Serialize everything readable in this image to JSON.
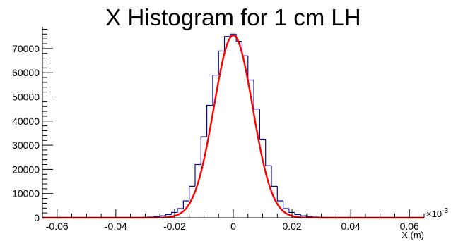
{
  "chart_data": {
    "type": "histogram",
    "title": "X Histogram for 1 cm LH",
    "xlabel": "X (m)",
    "ylabel": "",
    "x_exponent_label": "×10",
    "x_exponent_power": "-3",
    "xlim": [
      -0.065,
      0.065
    ],
    "ylim": [
      0,
      79000
    ],
    "x_ticks": [
      -0.06,
      -0.04,
      -0.02,
      0,
      0.02,
      0.04,
      0.06
    ],
    "x_tick_labels": [
      "-0.06",
      "-0.04",
      "-0.02",
      "0",
      "0.02",
      "0.04",
      "0.06"
    ],
    "y_ticks": [
      0,
      10000,
      20000,
      30000,
      40000,
      50000,
      60000,
      70000
    ],
    "y_tick_labels": [
      "0",
      "10000",
      "20000",
      "30000",
      "40000",
      "50000",
      "60000",
      "70000"
    ],
    "grid": false,
    "series": [
      {
        "type": "histogram",
        "color": "#0a0a8c",
        "bin_width": 0.002,
        "bin_centers": [
          -0.03,
          -0.028,
          -0.026,
          -0.024,
          -0.022,
          -0.02,
          -0.018,
          -0.016,
          -0.014,
          -0.012,
          -0.01,
          -0.008,
          -0.006,
          -0.004,
          -0.002,
          0,
          0.002,
          0.004,
          0.006,
          0.008,
          0.01,
          0.012,
          0.014,
          0.016,
          0.018,
          0.02,
          0.022,
          0.024,
          0.026,
          0.028,
          0.03
        ],
        "counts": [
          200,
          300,
          500,
          800,
          1300,
          2200,
          3800,
          7000,
          13000,
          22000,
          33500,
          46500,
          59000,
          69000,
          75000,
          76000,
          73000,
          67000,
          57000,
          45000,
          32500,
          21500,
          13000,
          7000,
          3800,
          2200,
          1300,
          800,
          500,
          300,
          200
        ]
      },
      {
        "type": "fit",
        "color": "#ff0000",
        "model": "gaussian",
        "amplitude": 75500,
        "mean": 0.0,
        "sigma": 0.0066
      }
    ]
  }
}
